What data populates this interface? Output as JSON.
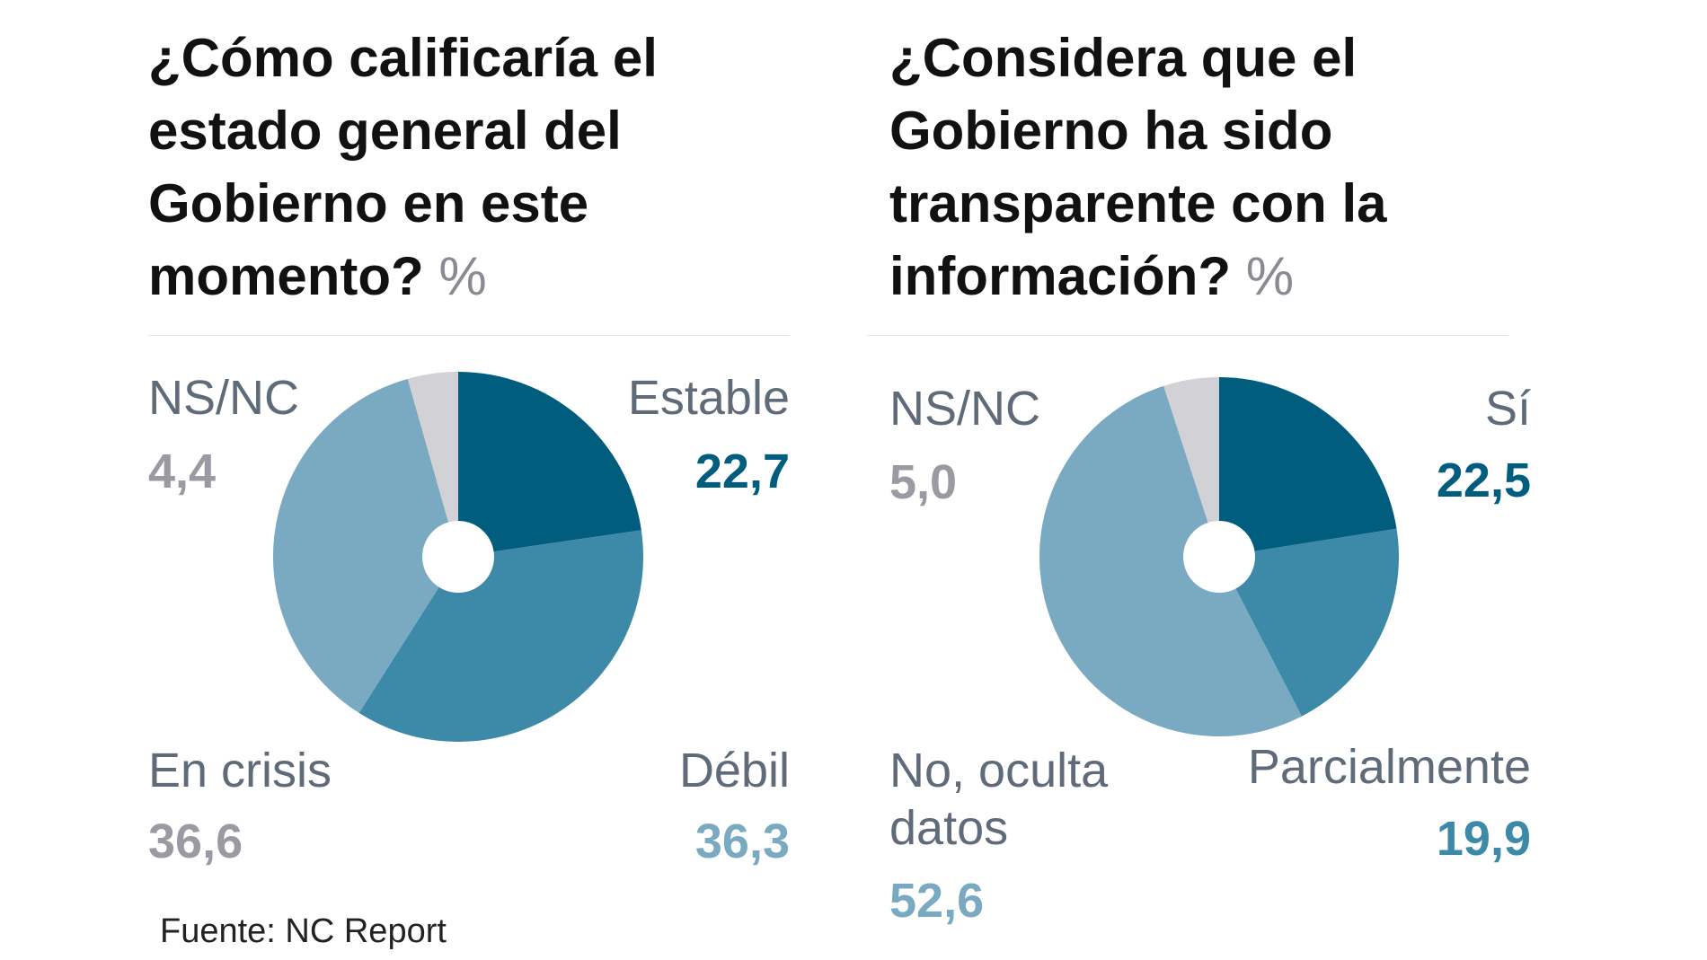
{
  "source": "Fuente: NC Report",
  "colors": {
    "dark": "#005d7e",
    "mid": "#3d89a8",
    "light": "#7aa9c2",
    "gray": "#d2d2d6",
    "label_text": "#5f6b78",
    "nsnc_value": "#9a9aa2",
    "title_text": "#111111",
    "unit_text": "#8a8a92"
  },
  "chart_data": [
    {
      "type": "pie",
      "title": "¿Cómo calificaría el estado general del Gobierno en este momento?",
      "unit": "%",
      "slices": [
        {
          "label": "Estable",
          "value": 22.7,
          "display": "22,7",
          "color": "#005d7e",
          "value_color": "#005d7e"
        },
        {
          "label": "Débil",
          "value": 36.3,
          "display": "36,3",
          "color": "#3d89a8",
          "value_color": "#7aa9c2"
        },
        {
          "label": "En crisis",
          "value": 36.6,
          "display": "36,6",
          "color": "#7aa9c2",
          "value_color": "#9a9aa2"
        },
        {
          "label": "NS/NC",
          "value": 4.4,
          "display": "4,4",
          "color": "#d2d2d6",
          "value_color": "#9a9aa2"
        }
      ]
    },
    {
      "type": "pie",
      "title": "¿Considera que el Gobierno ha sido transparente con la información?",
      "unit": "%",
      "slices": [
        {
          "label": "Sí",
          "value": 22.5,
          "display": "22,5",
          "color": "#005d7e",
          "value_color": "#005d7e"
        },
        {
          "label": "Parcialmente",
          "value": 19.9,
          "display": "19,9",
          "color": "#3d89a8",
          "value_color": "#3d89a8"
        },
        {
          "label": "No, oculta datos",
          "value": 52.6,
          "display": "52,6",
          "color": "#7aa9c2",
          "value_color": "#7aa9c2"
        },
        {
          "label": "NS/NC",
          "value": 5.0,
          "display": "5,0",
          "color": "#d2d2d6",
          "value_color": "#9a9aa2"
        }
      ]
    }
  ]
}
